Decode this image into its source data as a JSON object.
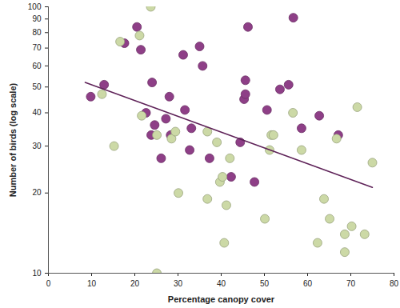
{
  "chart_data": {
    "type": "scatter",
    "x_label": "Percentage canopy cover",
    "y_label": "Number of birds (log scale)",
    "log": "y",
    "grid": false,
    "xlim": [
      0,
      80
    ],
    "xticks": [
      0,
      10,
      20,
      30,
      40,
      50,
      60,
      70,
      80
    ],
    "ylim": [
      10,
      100
    ],
    "yticks": [
      10,
      20,
      30,
      40,
      50,
      60,
      70,
      80,
      90,
      100
    ],
    "series": [
      {
        "type": "scatter",
        "marker": "circle",
        "color": "#8e3f87",
        "x": [
          9.8,
          12.9,
          20.5,
          21.4,
          17.6,
          22.6,
          24,
          23.8,
          24.6,
          26.1,
          27.2,
          28,
          28.3,
          31.2,
          31.6,
          32.7,
          33.1,
          35,
          35.7,
          37.3,
          44.4,
          45.3,
          45.6,
          45.6,
          46.2,
          47.7,
          42.3,
          50.6,
          53.6,
          55.6,
          56.7,
          58.6,
          62.7,
          67.1
        ],
        "values": [
          46,
          51,
          84,
          69,
          73,
          40,
          52,
          33,
          36,
          27,
          38,
          46,
          33,
          66,
          41,
          29,
          35,
          71,
          60,
          27,
          31,
          45,
          53,
          47,
          84,
          22,
          23,
          41,
          49,
          51,
          91,
          35,
          39,
          33
        ]
      },
      {
        "type": "scatter",
        "marker": "circle",
        "color": "#ccd9a6",
        "x": [
          12.4,
          15.2,
          16.6,
          21.1,
          21.6,
          23.7,
          25.1,
          25.1,
          28.5,
          29.4,
          30.1,
          36.8,
          36.8,
          39,
          39.7,
          42,
          40.3,
          41.2,
          40.7,
          50.1,
          51.2,
          51.6,
          52.1,
          56.6,
          58.6,
          63.8,
          65.1,
          62.3,
          66.7,
          68.6,
          68.6,
          70.2,
          71.5,
          73.2,
          75
        ],
        "values": [
          47,
          30,
          74,
          78,
          39,
          100,
          10,
          33,
          32,
          34,
          20,
          34,
          19,
          31,
          22,
          27,
          23,
          18,
          13,
          16,
          29,
          33,
          33,
          40,
          29,
          19,
          16,
          13,
          32,
          14,
          12,
          15,
          42,
          14,
          26
        ]
      },
      {
        "type": "line",
        "line_style": "solid",
        "color": "#5e2258",
        "x": [
          8.5,
          75
        ],
        "values": [
          52,
          21
        ]
      }
    ]
  }
}
